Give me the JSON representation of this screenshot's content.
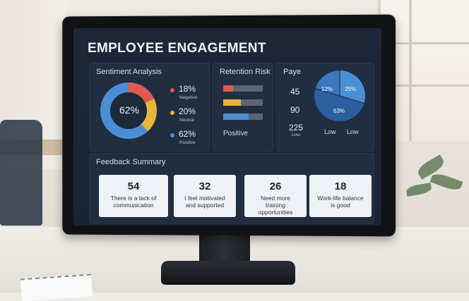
{
  "dashboard": {
    "title": "EMPLOYEE ENGAGEMENT"
  },
  "sentiment": {
    "title": "Sentiment Analysis",
    "center_label": "62%",
    "items": [
      {
        "value": "18%",
        "label": "Negative",
        "color": "#e05a4c"
      },
      {
        "value": "20%",
        "label": "Neutral",
        "color": "#e8b53a"
      },
      {
        "value": "62%",
        "label": "Positive",
        "color": "#4a8fd6"
      }
    ]
  },
  "retention": {
    "title": "Retention Risk",
    "footer_label": "Positive",
    "bars": [
      {
        "color": "#e05a4c",
        "level": 0.25
      },
      {
        "color": "#e8b53a",
        "level": 0.45
      },
      {
        "color": "#4a8fd6",
        "level": 0.65
      }
    ]
  },
  "pay": {
    "title": "Paye",
    "values": [
      "45",
      "90",
      "225"
    ],
    "value_sublabel": "Low",
    "pie_labels": [
      "12%",
      "25%",
      "63%"
    ],
    "legend": [
      "Low",
      "Low"
    ]
  },
  "feedback": {
    "title": "Feedback Summary",
    "cards": [
      {
        "count": "54",
        "text": "There is a lack of communication"
      },
      {
        "count": "32",
        "text": "I feel motivated and supported"
      },
      {
        "count": "26",
        "text": "Need more training opportunities"
      },
      {
        "count": "18",
        "text": "Work-life balance is good"
      }
    ]
  }
}
